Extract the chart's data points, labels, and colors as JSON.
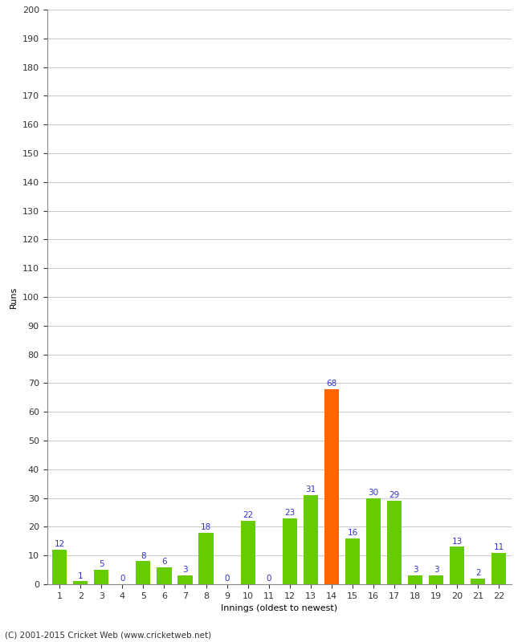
{
  "title": "",
  "xlabel": "Innings (oldest to newest)",
  "ylabel": "Runs",
  "innings": [
    1,
    2,
    3,
    4,
    5,
    6,
    7,
    8,
    9,
    10,
    11,
    12,
    13,
    14,
    15,
    16,
    17,
    18,
    19,
    20,
    21,
    22
  ],
  "values": [
    12,
    1,
    5,
    0,
    8,
    6,
    3,
    18,
    0,
    22,
    0,
    23,
    31,
    68,
    16,
    30,
    29,
    3,
    3,
    13,
    2,
    11
  ],
  "highlight_innings": [
    14
  ],
  "bar_color_normal": "#66cc00",
  "bar_color_highlight": "#ff6600",
  "label_color": "#3333cc",
  "ylim": [
    0,
    200
  ],
  "ytick_step": 10,
  "background_color": "#ffffff",
  "grid_color": "#cccccc",
  "footer": "(C) 2001-2015 Cricket Web (www.cricketweb.net)"
}
